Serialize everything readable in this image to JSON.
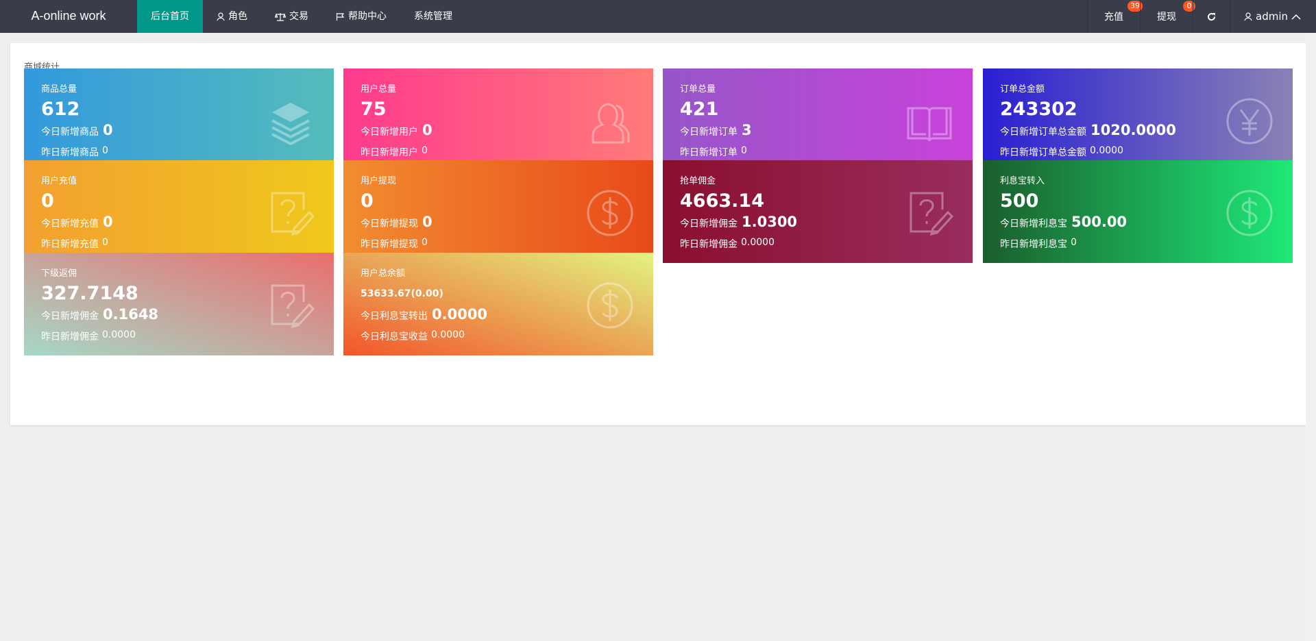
{
  "header": {
    "logo": "A-online work",
    "nav": [
      {
        "label": "后台首页",
        "icon": ""
      },
      {
        "label": "角色",
        "icon": "user-icon"
      },
      {
        "label": "交易",
        "icon": "scale-icon"
      },
      {
        "label": "帮助中心",
        "icon": "flag-icon"
      },
      {
        "label": "系统管理",
        "icon": ""
      }
    ],
    "recharge": {
      "label": "充值",
      "badge": "39"
    },
    "withdraw": {
      "label": "提现",
      "badge": "0"
    },
    "user": "admin"
  },
  "panel": {
    "title": "商城统计"
  },
  "cards": [
    {
      "title": "商品总量",
      "value": "612",
      "today_label": "今日新增商品",
      "today": "0",
      "yest_label": "昨日新增商品",
      "yest": "0",
      "icon": "layers-icon",
      "colors": [
        "#3399dd",
        "#55bcbc"
      ]
    },
    {
      "title": "用户总量",
      "value": "75",
      "today_label": "今日新增用户",
      "today": "0",
      "yest_label": "昨日新增用户",
      "yest": "0",
      "icon": "users-icon",
      "colors": [
        "#ff3a8e",
        "#ff7b78"
      ]
    },
    {
      "title": "订单总量",
      "value": "421",
      "today_label": "今日新增订单",
      "today": "3",
      "yest_label": "昨日新增订单",
      "yest": "0",
      "icon": "book-icon",
      "colors": [
        "#9656c8",
        "#c842da"
      ]
    },
    {
      "title": "订单总金额",
      "value": "243302",
      "today_label": "今日新增订单总金额",
      "today": "1020.0000",
      "yest_label": "昨日新增订单总金额",
      "yest": "0.0000",
      "icon": "yen-icon",
      "colors": [
        "#2a1fd2",
        "#8a82b6"
      ]
    },
    {
      "title": "用户充值",
      "value": "0",
      "today_label": "今日新增充值",
      "today": "0",
      "yest_label": "昨日新增充值",
      "yest": "0",
      "icon": "question-edit-icon",
      "colors": [
        "#f2a030",
        "#f0c81c"
      ]
    },
    {
      "title": "用户提现",
      "value": "0",
      "today_label": "今日新增提现",
      "today": "0",
      "yest_label": "昨日新增提现",
      "yest": "0",
      "icon": "dollar-icon",
      "colors": [
        "#f28c30",
        "#e84a1a"
      ]
    },
    {
      "title": "抢单佣金",
      "value": "4663.14",
      "today_label": "今日新增佣金",
      "today": "1.0300",
      "yest_label": "昨日新增佣金",
      "yest": "0.0000",
      "icon": "question-edit-icon",
      "colors": [
        "#8a0f2e",
        "#992d5e"
      ]
    },
    {
      "title": "利息宝转入",
      "value": "500",
      "today_label": "今日新增利息宝",
      "today": "500.00",
      "yest_label": "昨日新增利息宝",
      "yest": "0",
      "icon": "dollar-icon",
      "colors": [
        "#1a5e2c",
        "#1ee878"
      ]
    },
    {
      "title": "下级返佣",
      "value": "327.7148",
      "today_label": "今日新增佣金",
      "today": "0.1648",
      "yest_label": "昨日新增佣金",
      "yest": "0.0000",
      "icon": "question-edit-icon",
      "colors": [
        "#a6d8c6",
        "#ea6e6e"
      ]
    },
    {
      "title": "用户总余额",
      "value": "53633.67(0.00)",
      "today_label": "今日利息宝转出",
      "today": "0.0000",
      "yest_label": "今日利息宝收益",
      "yest": "0.0000",
      "icon": "dollar-icon",
      "colors": [
        "#f2562a",
        "#e2f482"
      ]
    }
  ]
}
